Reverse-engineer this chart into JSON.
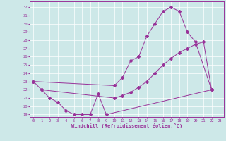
{
  "background_color": "#cde8e8",
  "line_color": "#993399",
  "xlabel": "Windchill (Refroidissement éolien,°C)",
  "xlim": [
    -0.5,
    23.5
  ],
  "ylim": [
    18.7,
    32.7
  ],
  "yticks": [
    19,
    20,
    21,
    22,
    23,
    24,
    25,
    26,
    27,
    28,
    29,
    30,
    31,
    32
  ],
  "xticks": [
    0,
    1,
    2,
    3,
    4,
    5,
    6,
    7,
    8,
    9,
    10,
    11,
    12,
    13,
    14,
    15,
    16,
    17,
    18,
    19,
    20,
    21,
    22,
    23
  ],
  "line1_x": [
    0,
    1,
    2,
    3,
    4,
    5,
    6,
    7,
    8,
    9,
    22
  ],
  "line1_y": [
    23.0,
    22.0,
    21.0,
    20.5,
    19.5,
    19.0,
    19.0,
    19.0,
    21.5,
    19.0,
    22.0
  ],
  "line2_x": [
    1,
    10,
    11,
    12,
    13,
    14,
    15,
    16,
    17,
    18,
    19,
    20,
    21,
    22
  ],
  "line2_y": [
    22.0,
    21.0,
    21.3,
    21.7,
    22.3,
    23.0,
    24.0,
    25.0,
    25.8,
    26.5,
    27.0,
    27.5,
    27.8,
    22.0
  ],
  "line3_x": [
    0,
    10,
    11,
    12,
    13,
    14,
    15,
    16,
    17,
    18,
    19,
    20,
    22
  ],
  "line3_y": [
    23.0,
    22.5,
    23.5,
    25.5,
    26.0,
    28.5,
    30.0,
    31.5,
    32.0,
    31.5,
    29.0,
    27.8,
    22.0
  ]
}
